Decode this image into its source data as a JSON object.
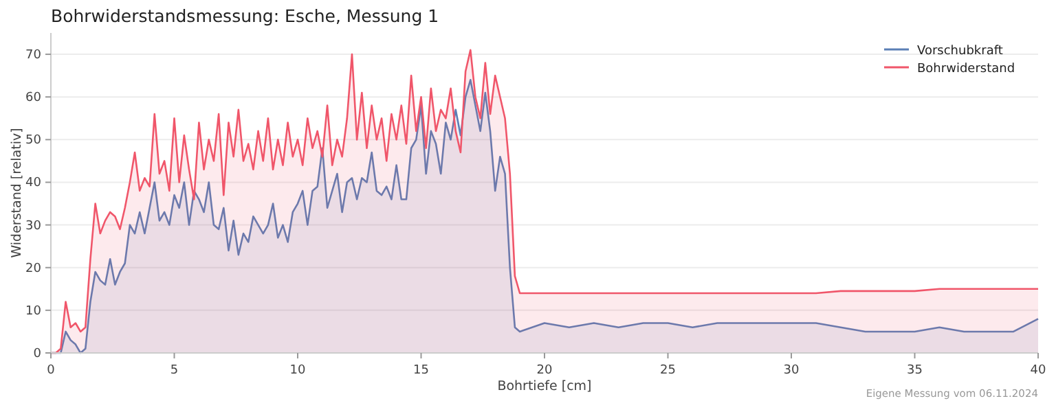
{
  "chart_data": {
    "type": "area",
    "title": "Bohrwiderstandsmessung: Esche, Messung 1",
    "xlabel": "Bohrtiefe [cm]",
    "ylabel": "Widerstand [relativ]",
    "annotations": [
      "Eigene Messung vom 06.11.2024"
    ],
    "x": [
      0,
      0.2,
      0.4,
      0.6,
      0.8,
      1.0,
      1.2,
      1.4,
      1.6,
      1.8,
      2.0,
      2.2,
      2.4,
      2.6,
      2.8,
      3.0,
      3.2,
      3.4,
      3.6,
      3.8,
      4.0,
      4.2,
      4.4,
      4.6,
      4.8,
      5.0,
      5.2,
      5.4,
      5.6,
      5.8,
      6.0,
      6.2,
      6.4,
      6.6,
      6.8,
      7.0,
      7.2,
      7.4,
      7.6,
      7.8,
      8.0,
      8.2,
      8.4,
      8.6,
      8.8,
      9.0,
      9.2,
      9.4,
      9.6,
      9.8,
      10.0,
      10.2,
      10.4,
      10.6,
      10.8,
      11.0,
      11.2,
      11.4,
      11.6,
      11.8,
      12.0,
      12.2,
      12.4,
      12.6,
      12.8,
      13.0,
      13.2,
      13.4,
      13.6,
      13.8,
      14.0,
      14.2,
      14.4,
      14.6,
      14.8,
      15.0,
      15.2,
      15.4,
      15.6,
      15.8,
      16.0,
      16.2,
      16.4,
      16.6,
      16.8,
      17.0,
      17.2,
      17.4,
      17.6,
      17.8,
      18.0,
      18.2,
      18.4,
      18.6,
      18.8,
      19.0,
      20,
      21,
      22,
      23,
      24,
      25,
      26,
      27,
      28,
      29,
      30,
      31,
      32,
      33,
      34,
      35,
      36,
      37,
      38,
      39,
      40
    ],
    "series": [
      {
        "name": "Vorschubkraft",
        "color": "#5b7fb5",
        "values": [
          0,
          0,
          0,
          5,
          3,
          2,
          0,
          1,
          12,
          19,
          17,
          16,
          22,
          16,
          19,
          21,
          30,
          28,
          33,
          28,
          34,
          40,
          31,
          33,
          30,
          37,
          34,
          40,
          30,
          38,
          36,
          33,
          40,
          30,
          29,
          34,
          24,
          31,
          23,
          28,
          26,
          32,
          30,
          28,
          30,
          35,
          27,
          30,
          26,
          33,
          35,
          38,
          30,
          38,
          39,
          48,
          34,
          38,
          42,
          33,
          40,
          41,
          36,
          41,
          40,
          47,
          38,
          37,
          39,
          36,
          44,
          36,
          36,
          48,
          50,
          58,
          42,
          52,
          49,
          42,
          54,
          50,
          57,
          51,
          60,
          64,
          58,
          52,
          61,
          52,
          38,
          46,
          42,
          20,
          6,
          5,
          7,
          6,
          7,
          6,
          7,
          7,
          6,
          7,
          7,
          7,
          7,
          7,
          6,
          5,
          5,
          5,
          6,
          5,
          5,
          5,
          8
        ]
      },
      {
        "name": "Bohrwiderstand",
        "color": "#f0566a",
        "values": [
          0,
          0,
          1,
          12,
          6,
          7,
          5,
          6,
          22,
          35,
          28,
          31,
          33,
          32,
          29,
          34,
          40,
          47,
          38,
          41,
          39,
          56,
          42,
          45,
          38,
          55,
          40,
          51,
          43,
          36,
          54,
          43,
          50,
          45,
          56,
          37,
          54,
          46,
          57,
          45,
          49,
          43,
          52,
          45,
          55,
          43,
          50,
          44,
          54,
          46,
          50,
          44,
          55,
          48,
          52,
          46,
          58,
          44,
          50,
          46,
          55,
          70,
          50,
          61,
          48,
          58,
          50,
          55,
          45,
          56,
          50,
          58,
          49,
          65,
          52,
          60,
          48,
          62,
          52,
          57,
          55,
          62,
          52,
          47,
          66,
          71,
          60,
          55,
          68,
          56,
          65,
          60,
          55,
          42,
          18,
          14,
          14,
          14,
          14,
          14,
          14,
          14,
          14,
          14,
          14,
          14,
          14,
          14,
          14.5,
          14.5,
          14.5,
          14.5,
          15,
          15,
          15,
          15,
          15
        ]
      }
    ],
    "xlim": [
      0,
      40
    ],
    "xticks": [
      0,
      5,
      10,
      15,
      20,
      25,
      30,
      35,
      40
    ],
    "ylim": [
      0,
      75
    ],
    "yticks": [
      0,
      10,
      20,
      30,
      40,
      50,
      60,
      70
    ],
    "grid": "y",
    "legend": "top right"
  }
}
